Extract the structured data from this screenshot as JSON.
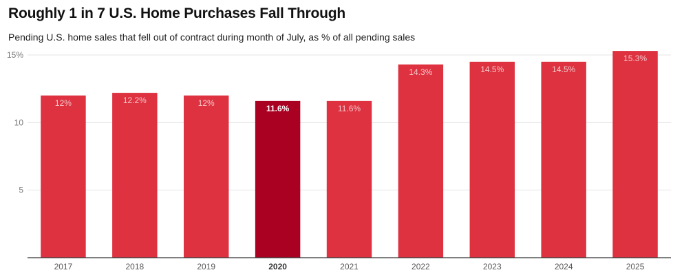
{
  "title": "Roughly 1 in 7 U.S. Home Purchases Fall Through",
  "subtitle": "Pending U.S. home sales that fell out of contract during month of July, as % of all pending sales",
  "colors": {
    "bar": "#de3241",
    "highlight": "#aa0022",
    "grid": "#e4e4e4",
    "axis": "#333333"
  },
  "chart_data": {
    "type": "bar",
    "title": "Roughly 1 in 7 U.S. Home Purchases Fall Through",
    "subtitle": "Pending U.S. home sales that fell out of contract during month of July, as % of all pending sales",
    "xlabel": "",
    "ylabel": "",
    "categories": [
      "2017",
      "2018",
      "2019",
      "2020",
      "2021",
      "2022",
      "2023",
      "2024",
      "2025"
    ],
    "values": [
      12.0,
      12.2,
      12.0,
      11.6,
      11.6,
      14.3,
      14.5,
      14.5,
      15.3
    ],
    "data_labels": [
      "12%",
      "12.2%",
      "12%",
      "11.6%",
      "11.6%",
      "14.3%",
      "14.5%",
      "14.5%",
      "15.3%"
    ],
    "highlight_category": "2020",
    "ylim": [
      0,
      15
    ],
    "yticks": [
      5,
      10,
      15
    ],
    "ytick_labels": [
      "5",
      "10",
      "15%"
    ],
    "grid": true
  }
}
